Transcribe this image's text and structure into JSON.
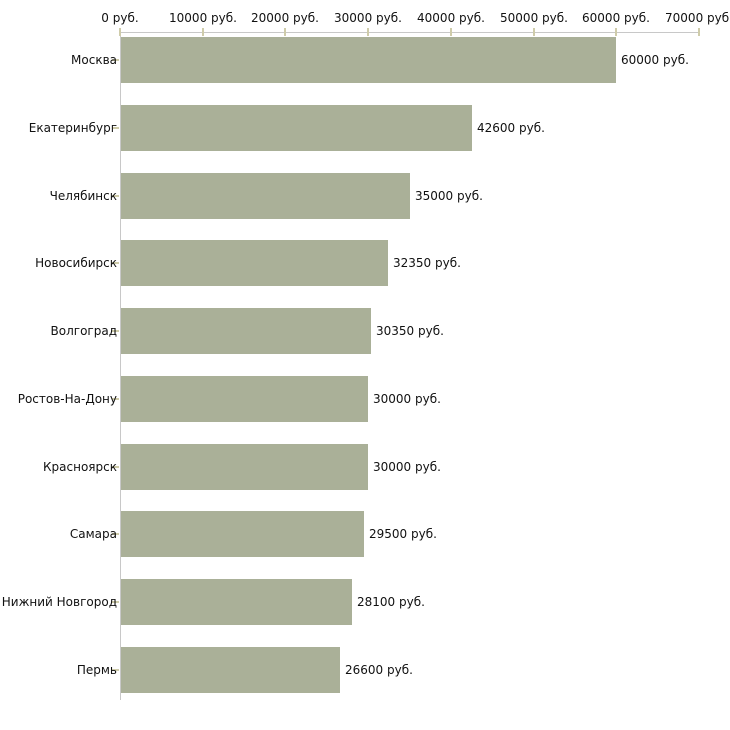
{
  "chart_data": {
    "type": "bar",
    "orientation": "horizontal",
    "title": "",
    "unit": "руб.",
    "categories": [
      "Москва",
      "Екатеринбург",
      "Челябинск",
      "Новосибирск",
      "Волгоград",
      "Ростов-На-Дону",
      "Красноярск",
      "Самара",
      "Нижний Новгород",
      "Пермь"
    ],
    "values": [
      60000,
      42600,
      35000,
      32350,
      30350,
      30000,
      30000,
      29500,
      28100,
      26600
    ],
    "value_labels": [
      "60000 руб.",
      "42600 руб.",
      "35000 руб.",
      "32350 руб.",
      "30350 руб.",
      "30000 руб.",
      "30000 руб.",
      "29500 руб.",
      "28100 руб.",
      "26600 руб."
    ],
    "x_axis": {
      "position": "top",
      "min": 0,
      "max": 70000,
      "tick_values": [
        0,
        10000,
        20000,
        30000,
        40000,
        50000,
        60000,
        70000
      ],
      "tick_labels": [
        "0 руб.",
        "10000 руб.",
        "20000 руб.",
        "30000 руб.",
        "40000 руб.",
        "50000 руб.",
        "60000 руб.",
        "70000 руб."
      ],
      "grid": false
    },
    "legend": null,
    "colors": {
      "bar": "#aab098",
      "axis_line": "#c8c8c8",
      "tick": "#cfccaa",
      "text": "#111111",
      "background": "#ffffff"
    }
  }
}
